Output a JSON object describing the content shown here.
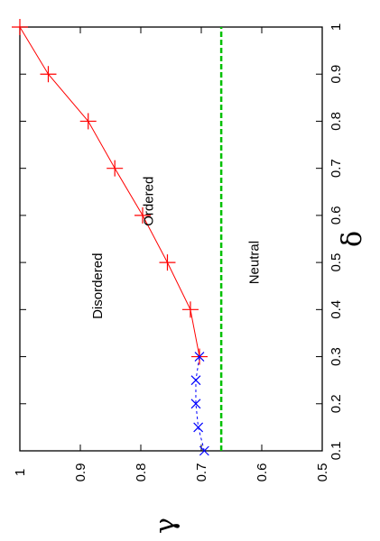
{
  "chart_data": {
    "type": "line",
    "orientation": "rotated-90-ccw",
    "title": "",
    "xlabel": "δ",
    "ylabel": "γ",
    "xlim": [
      0.1,
      1.0
    ],
    "ylim": [
      0.5,
      1.0
    ],
    "x_ticks": [
      "0.1",
      "0.2",
      "0.3",
      "0.4",
      "0.5",
      "0.6",
      "0.7",
      "0.8",
      "0.9",
      "1"
    ],
    "y_ticks": [
      "0.5",
      "0.6",
      "0.7",
      "0.8",
      "0.9",
      "1"
    ],
    "grid": false,
    "legend": "none",
    "series": [
      {
        "marker": "plus",
        "line": "solid",
        "color": "#ff0000",
        "x": [
          0.3,
          0.4,
          0.5,
          0.6,
          0.7,
          0.8,
          0.9,
          1.0
        ],
        "y": [
          0.703,
          0.718,
          0.756,
          0.797,
          0.843,
          0.887,
          0.953,
          1.0
        ]
      },
      {
        "marker": "cross",
        "line": "dashed",
        "color": "#0000ff",
        "x": [
          0.1,
          0.15,
          0.2,
          0.25,
          0.3
        ],
        "y": [
          0.695,
          0.705,
          0.709,
          0.709,
          0.703
        ]
      },
      {
        "marker": "none",
        "line": "dashed",
        "color": "#00c000",
        "x": [
          0.1,
          1.0
        ],
        "y": [
          0.667,
          0.667
        ]
      }
    ],
    "annotations": [
      {
        "text": "Disordered",
        "x": 0.45,
        "y": 0.864
      },
      {
        "text": "Ordered",
        "x": 0.63,
        "y": 0.78
      },
      {
        "text": "Neutral",
        "x": 0.5,
        "y": 0.605
      }
    ]
  }
}
